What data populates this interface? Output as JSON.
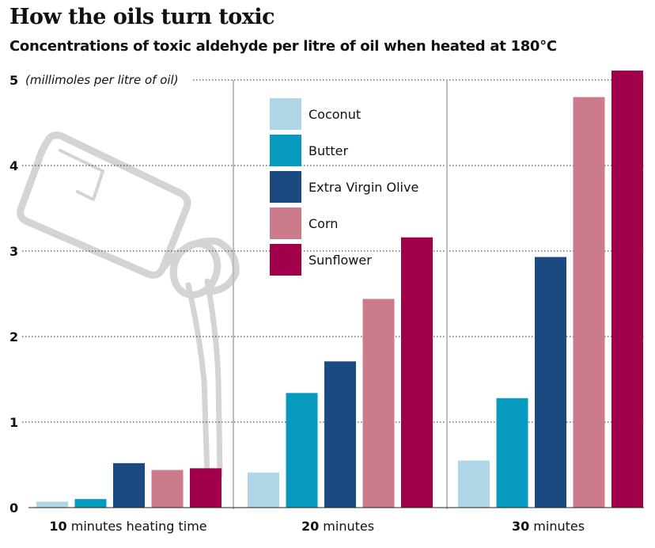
{
  "title": "How the oils turn toxic",
  "subtitle": "Concentrations of toxic aldehyde per litre of oil when heated at 180°C",
  "chart_data": {
    "type": "bar",
    "title": "How the oils turn toxic",
    "subtitle": "Concentrations of toxic aldehyde per litre of oil when heated at 180°C",
    "ylabel": "(millimoles per litre of oil)",
    "ylim": [
      0,
      5
    ],
    "yticks": [
      "0",
      "1",
      "2",
      "3",
      "4",
      "5"
    ],
    "grid": true,
    "legend_position": "top-center",
    "categories": [
      {
        "number": "10",
        "rest": "minutes heating time"
      },
      {
        "number": "20",
        "rest": "minutes"
      },
      {
        "number": "30",
        "rest": "minutes"
      }
    ],
    "series": [
      {
        "name": "Coconut",
        "color": "#aed6e6",
        "values": [
          0.07,
          0.41,
          0.55
        ]
      },
      {
        "name": "Butter",
        "color": "#0899bf",
        "values": [
          0.1,
          1.34,
          1.28
        ]
      },
      {
        "name": "Extra Virgin Olive",
        "color": "#1a4a80",
        "values": [
          0.52,
          1.71,
          2.93
        ]
      },
      {
        "name": "Corn",
        "color": "#cc7b8c",
        "values": [
          0.44,
          2.44,
          4.8
        ]
      },
      {
        "name": "Sunflower",
        "color": "#a1004b",
        "values": [
          0.46,
          3.16,
          5.11
        ]
      }
    ]
  },
  "illustration": {
    "icon": "oil-jug-pouring-icon",
    "stroke_color": "#d4d4d4"
  }
}
